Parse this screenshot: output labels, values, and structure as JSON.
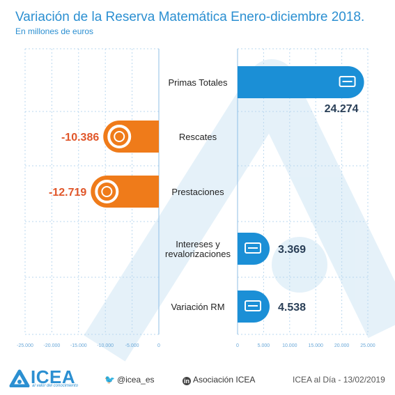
{
  "header": {
    "title": "Variación de la Reserva Matemática Enero-diciembre 2018.",
    "subtitle": "En millones de euros"
  },
  "chart_data": {
    "type": "bar",
    "orientation": "horizontal",
    "categories": [
      "Primas Totales",
      "Rescates",
      "Prestaciones",
      "Intereses y revalorizaciones",
      "Variación RM"
    ],
    "category_lines": [
      [
        "Primas Totales"
      ],
      [
        "Rescates"
      ],
      [
        "Prestaciones"
      ],
      [
        "Intereses y",
        "revalorizaciones"
      ],
      [
        "Variación RM"
      ]
    ],
    "values": [
      24274,
      -10386,
      -12719,
      3369,
      4538
    ],
    "value_labels": [
      "24.274",
      "-10.386",
      "-12.719",
      "3.369",
      "4.538"
    ],
    "icons": [
      "money-stack-icon",
      "lifebuoy-icon",
      "calculator-coins-icon",
      "growth-chart-icon",
      "safe-icon"
    ],
    "negative_ticks": [
      "-25.000",
      "-20.000",
      "-15.000",
      "-10.000",
      "-5.000",
      "0"
    ],
    "positive_ticks": [
      "0",
      "5.000",
      "10.000",
      "15.000",
      "20.000",
      "25.000"
    ],
    "xlim_negative": [
      -25000,
      0
    ],
    "xlim_positive": [
      0,
      25000
    ],
    "grid": true,
    "colors": {
      "positive": "#1b8fd6",
      "negative": "#ef7b1a",
      "negative_label": "#e0562a",
      "positive_label": "#2a3f57"
    }
  },
  "footer": {
    "logo_text": "ICEA",
    "logo_tagline": "al valor del conocimiento",
    "twitter": "@icea_es",
    "linkedin": "Asociación ICEA",
    "date": "ICEA al Día - 13/02/2019"
  }
}
